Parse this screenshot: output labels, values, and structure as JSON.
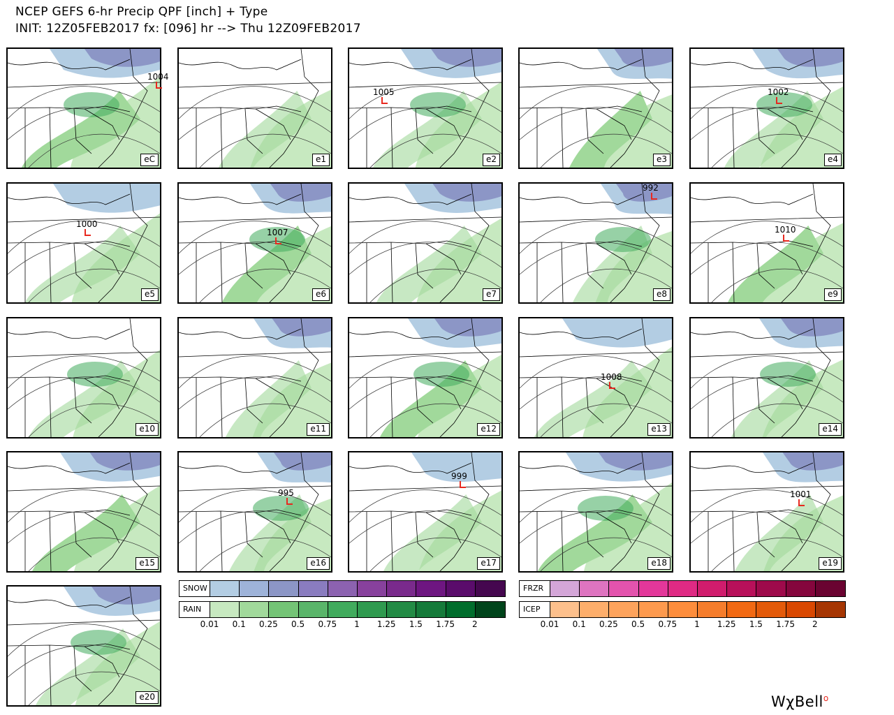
{
  "header": {
    "line1": "NCEP GEFS 6-hr Precip QPF [inch] + Type",
    "line2": "INIT: 12Z05FEB2017 fx: [096] hr --> Thu 12Z09FEB2017"
  },
  "panels": [
    {
      "label": "eC",
      "low": "1004"
    },
    {
      "label": "e1",
      "low": ""
    },
    {
      "label": "e2",
      "low": "1005"
    },
    {
      "label": "e3",
      "low": ""
    },
    {
      "label": "e4",
      "low": "1002"
    },
    {
      "label": "e5",
      "low": "1000"
    },
    {
      "label": "e6",
      "low": "1007"
    },
    {
      "label": "e7",
      "low": ""
    },
    {
      "label": "e8",
      "low": "992"
    },
    {
      "label": "e9",
      "low": "1010"
    },
    {
      "label": "e10",
      "low": ""
    },
    {
      "label": "e11",
      "low": ""
    },
    {
      "label": "e12",
      "low": ""
    },
    {
      "label": "e13",
      "low": "1008"
    },
    {
      "label": "e14",
      "low": ""
    },
    {
      "label": "e15",
      "low": ""
    },
    {
      "label": "e16",
      "low": "995"
    },
    {
      "label": "e17",
      "low": "999"
    },
    {
      "label": "e18",
      "low": ""
    },
    {
      "label": "e19",
      "low": "1001"
    },
    {
      "label": "e20",
      "low": ""
    }
  ],
  "legend_left": {
    "rows": [
      {
        "name": "SNOW",
        "colors": [
          "#b3cde3",
          "#9eb3d9",
          "#8c96c6",
          "#8a7cbf",
          "#8c62b0",
          "#88419d",
          "#7a2a8c",
          "#6e1681",
          "#5a0c6b",
          "#45074f"
        ]
      },
      {
        "name": "RAIN",
        "colors": [
          "#c7e9c0",
          "#a1d99b",
          "#74c476",
          "#5ab56a",
          "#41ab5d",
          "#2f9a4f",
          "#238b45",
          "#157a3a",
          "#006d2c",
          "#00441b"
        ]
      }
    ],
    "ticks": [
      "0.01",
      "0.1",
      "0.25",
      "0.5",
      "0.75",
      "1",
      "1.25",
      "1.5",
      "1.75",
      "2"
    ]
  },
  "legend_right": {
    "rows": [
      {
        "name": "FRZR",
        "colors": [
          "#d4a6d8",
          "#de74c0",
          "#e353ad",
          "#e3379a",
          "#df2a84",
          "#d01c6d",
          "#b8105a",
          "#9e0a4b",
          "#85063d",
          "#6a0331"
        ]
      },
      {
        "name": "ICEP",
        "colors": [
          "#fdc08c",
          "#fdae6b",
          "#fda35c",
          "#fd9a4e",
          "#fd8d3c",
          "#f57d2c",
          "#f16913",
          "#e35a0a",
          "#d94801",
          "#a63603"
        ]
      }
    ],
    "ticks": [
      "0.01",
      "0.1",
      "0.25",
      "0.5",
      "0.75",
      "1",
      "1.25",
      "1.5",
      "1.75",
      "2"
    ]
  },
  "colors": {
    "rain_light": "#c7e9c0",
    "rain_mid": "#a1d99b",
    "rain_dark": "#41ab5d",
    "snow_light": "#b3cde3",
    "snow_mid": "#8c96c6",
    "snow_dark": "#88419d",
    "low_marker": "#e8291f"
  },
  "logo": {
    "text": "WχBell",
    "dot": "o"
  }
}
